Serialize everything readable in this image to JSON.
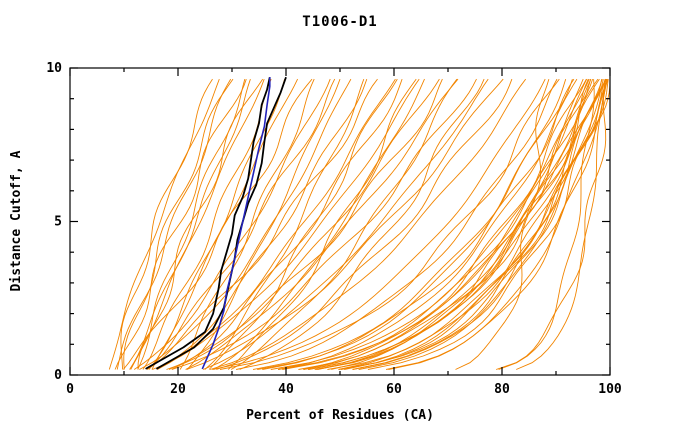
{
  "chart_data": {
    "type": "line",
    "title": "T1006-D1",
    "xlabel": "Percent of Residues (CA)",
    "ylabel": "Distance Cutoff, A",
    "xlim": [
      0,
      100
    ],
    "ylim": [
      0,
      10
    ],
    "x_major_ticks": [
      0,
      20,
      40,
      60,
      80,
      100
    ],
    "x_minor_ticks": [
      10,
      30,
      50,
      70,
      90
    ],
    "y_major_ticks": [
      0,
      5,
      10
    ],
    "y_minor_ticks": [
      1,
      2,
      3,
      4,
      6,
      7,
      8,
      9
    ],
    "grid": false,
    "legend": "none",
    "colors": {
      "ensemble": "#f28500",
      "model_black": "#000000",
      "model_blue": "#2222bb",
      "frame": "#000000"
    },
    "highlight_series": [
      {
        "name": "model-black-1",
        "color": "#000000",
        "width": 1.8,
        "points": [
          [
            14,
            0.2
          ],
          [
            17,
            0.5
          ],
          [
            21,
            0.9
          ],
          [
            25,
            1.4
          ],
          [
            26.5,
            2.0
          ],
          [
            27.5,
            2.8
          ],
          [
            28,
            3.4
          ],
          [
            29,
            4.0
          ],
          [
            30,
            4.6
          ],
          [
            30.5,
            5.2
          ],
          [
            32,
            5.8
          ],
          [
            33,
            6.4
          ],
          [
            33.5,
            7.0
          ],
          [
            34,
            7.6
          ],
          [
            35,
            8.2
          ],
          [
            35.5,
            8.8
          ],
          [
            36.5,
            9.3
          ],
          [
            37,
            9.7
          ]
        ]
      },
      {
        "name": "model-black-2",
        "color": "#000000",
        "width": 1.8,
        "points": [
          [
            16,
            0.2
          ],
          [
            19,
            0.5
          ],
          [
            23,
            0.9
          ],
          [
            26.5,
            1.5
          ],
          [
            28.5,
            2.2
          ],
          [
            29.5,
            3.0
          ],
          [
            30.5,
            3.8
          ],
          [
            31,
            4.4
          ],
          [
            32,
            5.0
          ],
          [
            33,
            5.6
          ],
          [
            34.5,
            6.2
          ],
          [
            35.5,
            6.9
          ],
          [
            36,
            7.6
          ],
          [
            36.5,
            8.2
          ],
          [
            38,
            8.8
          ],
          [
            39,
            9.2
          ],
          [
            40,
            9.7
          ]
        ]
      },
      {
        "name": "model-blue",
        "color": "#2222bb",
        "width": 1.6,
        "points": [
          [
            24.5,
            0.2
          ],
          [
            25.5,
            0.6
          ],
          [
            26.5,
            1.0
          ],
          [
            27.5,
            1.5
          ],
          [
            28.5,
            2.1
          ],
          [
            29,
            2.7
          ],
          [
            30,
            3.4
          ],
          [
            31,
            4.2
          ],
          [
            32,
            5.0
          ],
          [
            33,
            5.8
          ],
          [
            34,
            6.6
          ],
          [
            35,
            7.4
          ],
          [
            36,
            8.1
          ],
          [
            36.5,
            8.8
          ],
          [
            37,
            9.4
          ],
          [
            37,
            9.7
          ]
        ]
      }
    ],
    "ensemble_curves": [
      [
        7,
        28,
        1.2
      ],
      [
        8,
        30,
        1.0
      ],
      [
        9,
        32,
        1.1
      ],
      [
        10,
        34,
        0.9
      ],
      [
        10,
        30,
        1.3
      ],
      [
        11,
        36,
        1.0
      ],
      [
        12,
        38,
        0.85
      ],
      [
        13,
        35,
        1.2
      ],
      [
        14,
        40,
        0.9
      ],
      [
        9,
        27,
        1.4
      ],
      [
        15,
        42,
        1.0
      ],
      [
        12,
        33,
        1.1
      ],
      [
        8,
        45,
        0.8
      ],
      [
        10,
        48,
        0.7
      ],
      [
        12,
        50,
        0.8
      ],
      [
        9,
        52,
        0.6
      ],
      [
        14,
        55,
        0.7
      ],
      [
        11,
        58,
        0.75
      ],
      [
        13,
        60,
        0.65
      ],
      [
        16,
        62,
        0.7
      ],
      [
        10,
        65,
        0.6
      ],
      [
        15,
        68,
        0.65
      ],
      [
        12,
        70,
        0.6
      ],
      [
        18,
        72,
        0.7
      ],
      [
        14,
        75,
        0.6
      ],
      [
        20,
        78,
        0.65
      ],
      [
        16,
        80,
        0.6
      ],
      [
        22,
        82,
        0.6
      ],
      [
        18,
        85,
        0.55
      ],
      [
        25,
        60,
        0.8
      ],
      [
        24,
        66,
        0.7
      ],
      [
        26,
        72,
        0.65
      ],
      [
        28,
        76,
        0.6
      ],
      [
        23,
        55,
        0.75
      ],
      [
        27,
        64,
        0.7
      ],
      [
        21,
        50,
        0.85
      ],
      [
        19,
        46,
        0.9
      ],
      [
        8,
        90,
        0.35
      ],
      [
        10,
        92,
        0.3
      ],
      [
        12,
        94,
        0.32
      ],
      [
        9,
        96,
        0.28
      ],
      [
        14,
        97,
        0.3
      ],
      [
        11,
        98,
        0.26
      ],
      [
        13,
        99,
        0.3
      ],
      [
        16,
        100,
        0.25
      ],
      [
        10,
        95,
        0.22
      ],
      [
        15,
        93,
        0.35
      ],
      [
        12,
        97,
        0.24
      ],
      [
        18,
        99,
        0.28
      ],
      [
        14,
        100,
        0.22
      ],
      [
        20,
        96,
        0.3
      ],
      [
        16,
        98,
        0.2
      ],
      [
        22,
        100,
        0.26
      ],
      [
        18,
        94,
        0.33
      ],
      [
        25,
        98,
        0.24
      ],
      [
        24,
        100,
        0.2
      ],
      [
        26,
        99,
        0.28
      ],
      [
        28,
        100,
        0.24
      ],
      [
        23,
        97,
        0.3
      ],
      [
        27,
        95,
        0.35
      ],
      [
        21,
        99,
        0.22
      ],
      [
        19,
        100,
        0.18
      ],
      [
        17,
        96,
        0.26
      ],
      [
        29,
        100,
        0.3
      ],
      [
        30,
        98,
        0.33
      ],
      [
        11,
        88,
        0.4
      ],
      [
        13,
        91,
        0.38
      ],
      [
        12,
        88,
        0.06
      ],
      [
        15,
        97,
        0.06
      ],
      [
        20,
        100,
        0.08
      ],
      [
        10,
        99,
        0.05
      ]
    ]
  }
}
